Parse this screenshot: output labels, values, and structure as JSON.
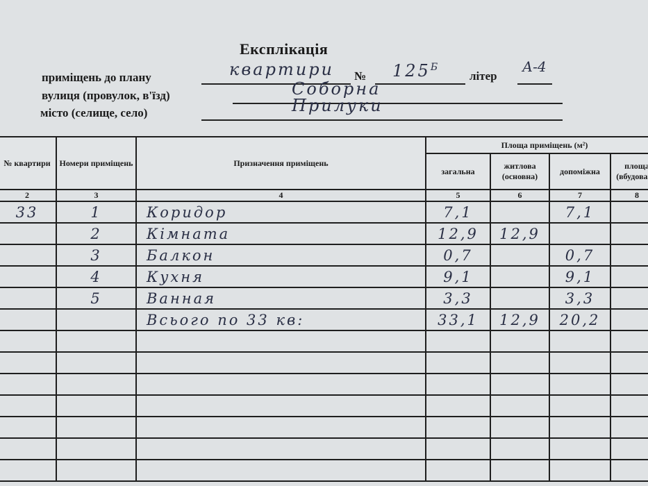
{
  "title": "Експлікація",
  "fields": {
    "premises_label": "приміщень до плану",
    "premises_value": "квартири",
    "number_label": "№",
    "number_value": "125",
    "number_superscript": "Б",
    "liter_label": "літер",
    "liter_value": "А-4",
    "street_label": "вулиця (провулок, в'їзд)",
    "street_value": "Соборна",
    "city_label": "місто (селище, село)",
    "city_value": "Прилуки"
  },
  "table": {
    "headers": {
      "apt_no": "№ квартири",
      "room_no": "Номери приміщень",
      "purpose": "Призначення приміщень",
      "area_group": "Площа приміщень (м²)",
      "total": "загальна",
      "living": "житлова (основна)",
      "aux": "допоміжна",
      "built_in": "площа (вбудовані)"
    },
    "col_numbers": [
      "2",
      "3",
      "4",
      "5",
      "6",
      "7",
      "8"
    ],
    "rows": [
      {
        "apt": "33",
        "room": "1",
        "purpose": "Коридор",
        "total": "7,1",
        "living": "",
        "aux": "7,1"
      },
      {
        "apt": "",
        "room": "2",
        "purpose": "Кімната",
        "total": "12,9",
        "living": "12,9",
        "aux": ""
      },
      {
        "apt": "",
        "room": "3",
        "purpose": "Балкон",
        "total": "0,7",
        "living": "",
        "aux": "0,7"
      },
      {
        "apt": "",
        "room": "4",
        "purpose": "Кухня",
        "total": "9,1",
        "living": "",
        "aux": "9,1"
      },
      {
        "apt": "",
        "room": "5",
        "purpose": "Ванная",
        "total": "3,3",
        "living": "",
        "aux": "3,3"
      },
      {
        "apt": "",
        "room": "",
        "purpose": "Всього по 33 кв:",
        "total": "33,1",
        "living": "12,9",
        "aux": "20,2"
      }
    ]
  }
}
